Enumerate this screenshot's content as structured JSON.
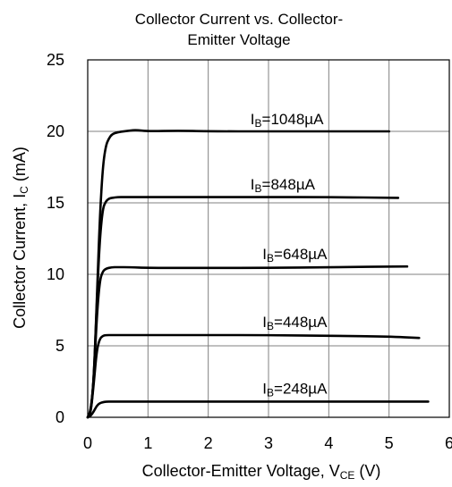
{
  "chart_data": {
    "type": "line",
    "title_lines": [
      "Collector Current vs. Collector-",
      "Emitter Voltage"
    ],
    "xlabel": {
      "main": "Collector-Emitter Voltage, V",
      "sub": "CE",
      "unit": " (V)"
    },
    "ylabel": {
      "main": "Collector Current, I",
      "sub": "C",
      "unit": " (mA)"
    },
    "xlim": [
      0,
      6
    ],
    "ylim": [
      0,
      25
    ],
    "xticks": [
      "0",
      "1",
      "2",
      "3",
      "4",
      "5",
      "6"
    ],
    "yticks": [
      "0",
      "5",
      "10",
      "15",
      "20",
      "25"
    ],
    "grid": true,
    "legend": "none",
    "series": [
      {
        "label": {
          "prefix": "I",
          "sub": "B",
          "value": "=1048µA"
        },
        "x": [
          0.0,
          0.05,
          0.1,
          0.15,
          0.2,
          0.25,
          0.3,
          0.35,
          0.4,
          0.5,
          0.6,
          0.7,
          0.8,
          1.0,
          1.5,
          2.0,
          3.0,
          4.0,
          5.0
        ],
        "y": [
          0.0,
          0.5,
          2.5,
          8.0,
          14.0,
          17.5,
          19.0,
          19.5,
          19.8,
          19.95,
          20.0,
          20.05,
          20.1,
          20.0,
          20.05,
          20.0,
          20.0,
          20.0,
          20.0
        ]
      },
      {
        "label": {
          "prefix": "I",
          "sub": "B",
          "value": "=848µA"
        },
        "x": [
          0.0,
          0.05,
          0.1,
          0.15,
          0.2,
          0.25,
          0.3,
          0.35,
          0.4,
          0.5,
          0.6,
          1.0,
          2.0,
          3.0,
          4.0,
          5.15
        ],
        "y": [
          0.0,
          0.4,
          2.5,
          8.0,
          12.5,
          14.6,
          15.1,
          15.3,
          15.35,
          15.4,
          15.4,
          15.4,
          15.4,
          15.4,
          15.4,
          15.35
        ]
      },
      {
        "label": {
          "prefix": "I",
          "sub": "B",
          "value": "=648µA"
        },
        "x": [
          0.0,
          0.05,
          0.1,
          0.15,
          0.2,
          0.25,
          0.3,
          0.4,
          0.5,
          0.7,
          1.0,
          2.0,
          3.0,
          4.0,
          5.3
        ],
        "y": [
          0.0,
          0.3,
          2.5,
          7.0,
          9.6,
          10.2,
          10.4,
          10.5,
          10.5,
          10.5,
          10.45,
          10.45,
          10.45,
          10.5,
          10.55
        ]
      },
      {
        "label": {
          "prefix": "I",
          "sub": "B",
          "value": "=448µA"
        },
        "x": [
          0.0,
          0.05,
          0.1,
          0.15,
          0.2,
          0.25,
          0.3,
          0.4,
          0.5,
          1.0,
          2.0,
          3.0,
          4.0,
          5.0,
          5.5
        ],
        "y": [
          0.0,
          0.3,
          2.3,
          4.7,
          5.5,
          5.7,
          5.75,
          5.75,
          5.75,
          5.75,
          5.75,
          5.75,
          5.7,
          5.65,
          5.55
        ]
      },
      {
        "label": {
          "prefix": "I",
          "sub": "B",
          "value": "=248µA"
        },
        "x": [
          0.0,
          0.05,
          0.1,
          0.15,
          0.2,
          0.25,
          0.3,
          0.4,
          0.5,
          1.0,
          2.0,
          3.0,
          4.0,
          5.0,
          5.65
        ],
        "y": [
          0.0,
          0.1,
          0.4,
          0.8,
          1.0,
          1.05,
          1.1,
          1.1,
          1.1,
          1.1,
          1.1,
          1.1,
          1.1,
          1.1,
          1.1
        ]
      }
    ],
    "annotations": [
      {
        "series": 0,
        "at_x": 2.7,
        "at_y": 20.0
      },
      {
        "series": 1,
        "at_x": 2.7,
        "at_y": 15.45
      },
      {
        "series": 2,
        "at_x": 2.9,
        "at_y": 10.55
      },
      {
        "series": 3,
        "at_x": 2.9,
        "at_y": 5.8
      },
      {
        "series": 4,
        "at_x": 2.9,
        "at_y": 1.15
      }
    ],
    "colors": {
      "grid": "#808080",
      "axis": "#000000",
      "line": "#000000"
    }
  }
}
